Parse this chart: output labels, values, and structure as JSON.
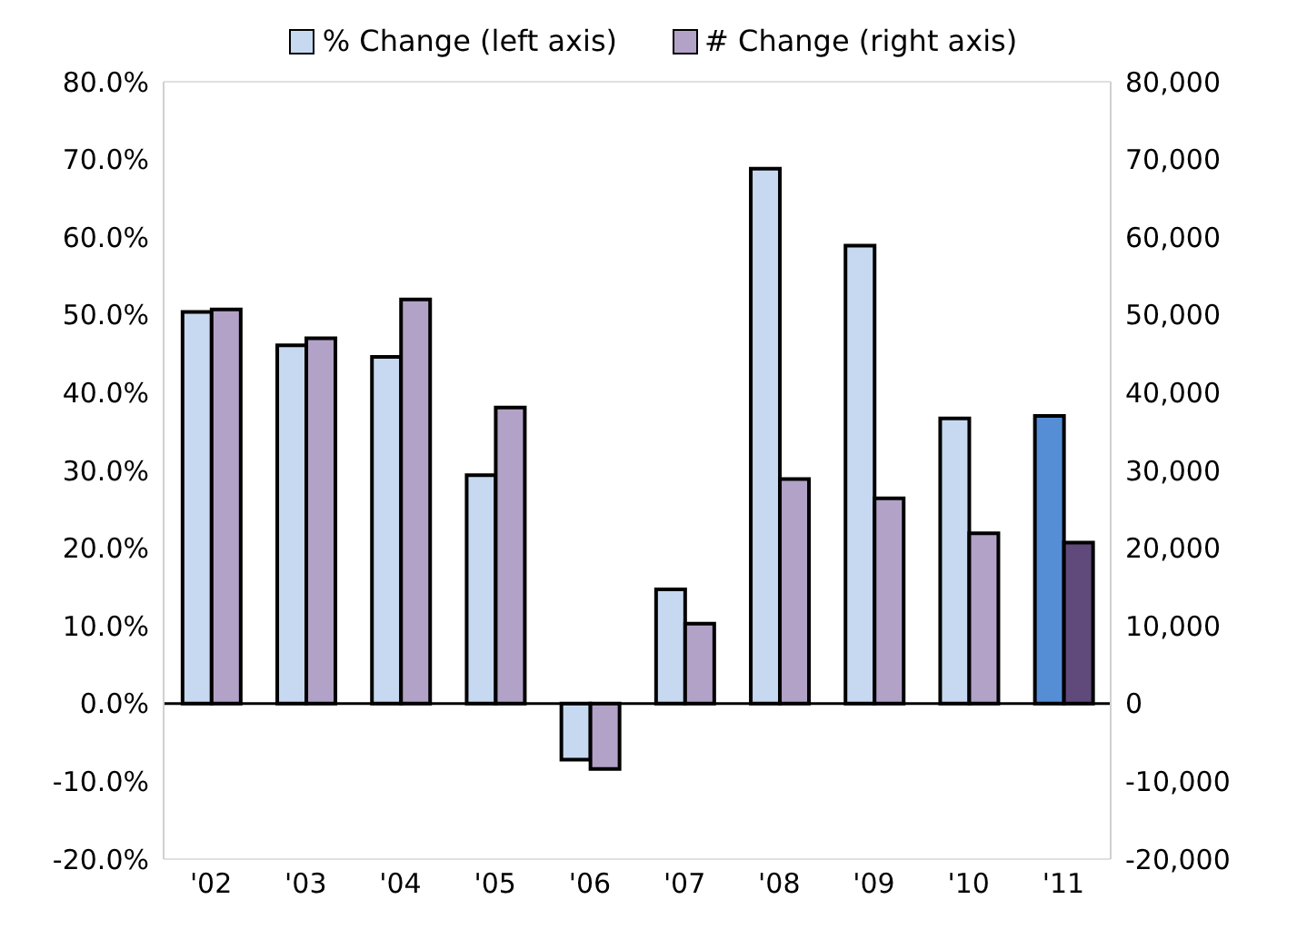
{
  "chart_data": {
    "type": "bar",
    "categories": [
      "'02",
      "'03",
      "'04",
      "'05",
      "'06",
      "'07",
      "'08",
      "'09",
      "'10",
      "'11"
    ],
    "series": [
      {
        "name": "% Change (left axis)",
        "color": "#c6d9f1",
        "colors": [
          "#c6d9f1",
          "#c6d9f1",
          "#c6d9f1",
          "#c6d9f1",
          "#c6d9f1",
          "#c6d9f1",
          "#c6d9f1",
          "#c6d9f1",
          "#c6d9f1",
          "#558ed5"
        ],
        "values": [
          50.4,
          46.1,
          44.6,
          29.4,
          -7.2,
          14.7,
          68.8,
          58.9,
          36.7,
          37.0
        ]
      },
      {
        "name": "# Change (right axis)",
        "axis": "y2",
        "color": "#b3a2c7",
        "colors": [
          "#b3a2c7",
          "#b3a2c7",
          "#b3a2c7",
          "#b3a2c7",
          "#b3a2c7",
          "#b3a2c7",
          "#b3a2c7",
          "#b3a2c7",
          "#b3a2c7",
          "#604a7b"
        ],
        "values": [
          50700,
          47000,
          52000,
          38100,
          -8400,
          10300,
          28900,
          26400,
          21900,
          20700
        ]
      }
    ],
    "ylim": [
      -20,
      80
    ],
    "yticks": [
      {
        "value": -20,
        "label": "-20.0%"
      },
      {
        "value": -10,
        "label": "-10.0%"
      },
      {
        "value": 0,
        "label": "0.0%"
      },
      {
        "value": 10,
        "label": "10.0%"
      },
      {
        "value": 20,
        "label": "20.0%"
      },
      {
        "value": 30,
        "label": "30.0%"
      },
      {
        "value": 40,
        "label": "40.0%"
      },
      {
        "value": 50,
        "label": "50.0%"
      },
      {
        "value": 60,
        "label": "60.0%"
      },
      {
        "value": 70,
        "label": "70.0%"
      },
      {
        "value": 80,
        "label": "80.0%"
      }
    ],
    "y2lim": [
      -20000,
      80000
    ],
    "y2ticks": [
      {
        "value": -20000,
        "label": "-20,000"
      },
      {
        "value": -10000,
        "label": "-10,000"
      },
      {
        "value": 0,
        "label": "0"
      },
      {
        "value": 10000,
        "label": "10,000"
      },
      {
        "value": 20000,
        "label": "20,000"
      },
      {
        "value": 30000,
        "label": "30,000"
      },
      {
        "value": 40000,
        "label": "40,000"
      },
      {
        "value": 50000,
        "label": "50,000"
      },
      {
        "value": 60000,
        "label": "60,000"
      },
      {
        "value": 70000,
        "label": "70,000"
      },
      {
        "value": 80000,
        "label": "80,000"
      }
    ],
    "grid": "y",
    "legend": "top"
  }
}
